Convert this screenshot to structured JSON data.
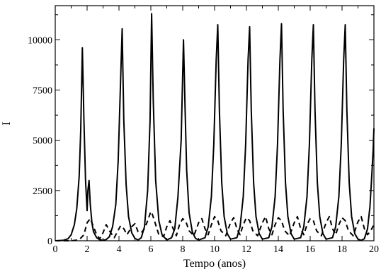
{
  "chart_data": {
    "type": "line",
    "xlabel": "Tempo (anos)",
    "ylabel": "I",
    "xlim": [
      0,
      20
    ],
    "ylim": [
      0,
      11700
    ],
    "xticks": [
      0,
      2,
      4,
      6,
      8,
      10,
      12,
      14,
      16,
      18,
      20
    ],
    "yticks": [
      0,
      2500,
      5000,
      7500,
      10000
    ],
    "legend": "none",
    "grid": false,
    "series": [
      {
        "style": "solid",
        "color": "#000000",
        "x": [
          0,
          0.5,
          0.8,
          1.0,
          1.2,
          1.35,
          1.5,
          1.6,
          1.7,
          1.8,
          1.9,
          2.0,
          2.05,
          2.12,
          2.2,
          2.3,
          2.4,
          2.6,
          2.8,
          3.0,
          3.2,
          3.4,
          3.6,
          3.8,
          3.95,
          4.1,
          4.2,
          4.3,
          4.45,
          4.6,
          4.8,
          5.0,
          5.2,
          5.4,
          5.6,
          5.8,
          5.95,
          6.05,
          6.15,
          6.3,
          6.5,
          6.7,
          7.0,
          7.3,
          7.5,
          7.7,
          7.9,
          8.05,
          8.15,
          8.25,
          8.4,
          8.6,
          8.8,
          9.0,
          9.4,
          9.6,
          9.8,
          9.95,
          10.1,
          10.2,
          10.3,
          10.45,
          10.6,
          10.8,
          11.0,
          11.4,
          11.6,
          11.8,
          11.95,
          12.1,
          12.2,
          12.3,
          12.45,
          12.6,
          12.8,
          13.0,
          13.4,
          13.6,
          13.8,
          13.95,
          14.1,
          14.2,
          14.3,
          14.45,
          14.6,
          14.8,
          15.0,
          15.4,
          15.6,
          15.8,
          15.95,
          16.1,
          16.2,
          16.3,
          16.45,
          16.6,
          16.8,
          17.0,
          17.4,
          17.6,
          17.8,
          17.95,
          18.1,
          18.2,
          18.3,
          18.45,
          18.6,
          18.8,
          19.0,
          19.2,
          19.4,
          19.6,
          19.75,
          19.85,
          19.95,
          20.0
        ],
        "y": [
          0,
          20,
          100,
          300,
          800,
          1600,
          3200,
          5500,
          9600,
          6000,
          3000,
          1500,
          2500,
          3000,
          1800,
          900,
          450,
          150,
          50,
          20,
          60,
          200,
          700,
          1800,
          4000,
          8000,
          10550,
          6000,
          2800,
          1200,
          400,
          120,
          40,
          150,
          700,
          2500,
          6000,
          11300,
          7000,
          3000,
          1000,
          300,
          40,
          150,
          600,
          2200,
          5000,
          10000,
          6500,
          3500,
          1400,
          450,
          120,
          40,
          150,
          700,
          2200,
          4800,
          9000,
          10750,
          6500,
          2900,
          1200,
          350,
          80,
          150,
          700,
          2200,
          4800,
          9000,
          10650,
          6500,
          2900,
          1200,
          350,
          80,
          150,
          700,
          2200,
          4800,
          9000,
          10800,
          6500,
          2900,
          1200,
          350,
          80,
          150,
          700,
          2200,
          4800,
          9000,
          10750,
          6500,
          2900,
          1200,
          350,
          80,
          150,
          700,
          2200,
          4800,
          9000,
          10750,
          6500,
          2900,
          1200,
          350,
          80,
          20,
          100,
          600,
          1700,
          3000,
          4500,
          5600
        ]
      },
      {
        "style": "dashed",
        "color": "#000000",
        "x": [
          0,
          1.0,
          1.5,
          1.8,
          2.0,
          2.2,
          2.4,
          2.6,
          2.8,
          3.0,
          3.2,
          3.4,
          3.7,
          3.9,
          4.1,
          4.3,
          4.5,
          4.8,
          5.0,
          5.2,
          5.4,
          5.6,
          5.8,
          6.0,
          6.1,
          6.3,
          6.5,
          6.8,
          7.0,
          7.2,
          7.4,
          7.6,
          7.8,
          8.0,
          8.2,
          8.4,
          8.7,
          9.0,
          9.2,
          9.4,
          9.6,
          9.8,
          10.0,
          10.2,
          10.4,
          10.7,
          11.0,
          11.2,
          11.4,
          11.6,
          11.8,
          12.0,
          12.2,
          12.4,
          12.7,
          13.0,
          13.2,
          13.4,
          13.6,
          13.8,
          14.0,
          14.2,
          14.4,
          14.7,
          15.0,
          15.2,
          15.4,
          15.6,
          15.8,
          16.0,
          16.2,
          16.4,
          16.7,
          17.0,
          17.2,
          17.4,
          17.6,
          17.8,
          18.0,
          18.2,
          18.4,
          18.7,
          19.0,
          19.2,
          19.4,
          19.6,
          19.8,
          20.0
        ],
        "y": [
          0,
          0,
          50,
          300,
          900,
          1100,
          700,
          300,
          100,
          400,
          800,
          500,
          150,
          450,
          750,
          600,
          300,
          700,
          850,
          450,
          400,
          600,
          1000,
          1450,
          1300,
          800,
          300,
          200,
          700,
          1000,
          600,
          250,
          800,
          1100,
          950,
          500,
          250,
          900,
          1100,
          600,
          300,
          800,
          1200,
          1000,
          500,
          250,
          900,
          1150,
          600,
          300,
          800,
          1150,
          1000,
          500,
          250,
          900,
          1200,
          600,
          300,
          800,
          1150,
          1000,
          500,
          250,
          900,
          1200,
          600,
          300,
          800,
          1100,
          1000,
          500,
          250,
          900,
          1200,
          600,
          300,
          800,
          1150,
          1000,
          500,
          250,
          950,
          1200,
          600,
          300,
          500,
          800
        ]
      }
    ]
  }
}
